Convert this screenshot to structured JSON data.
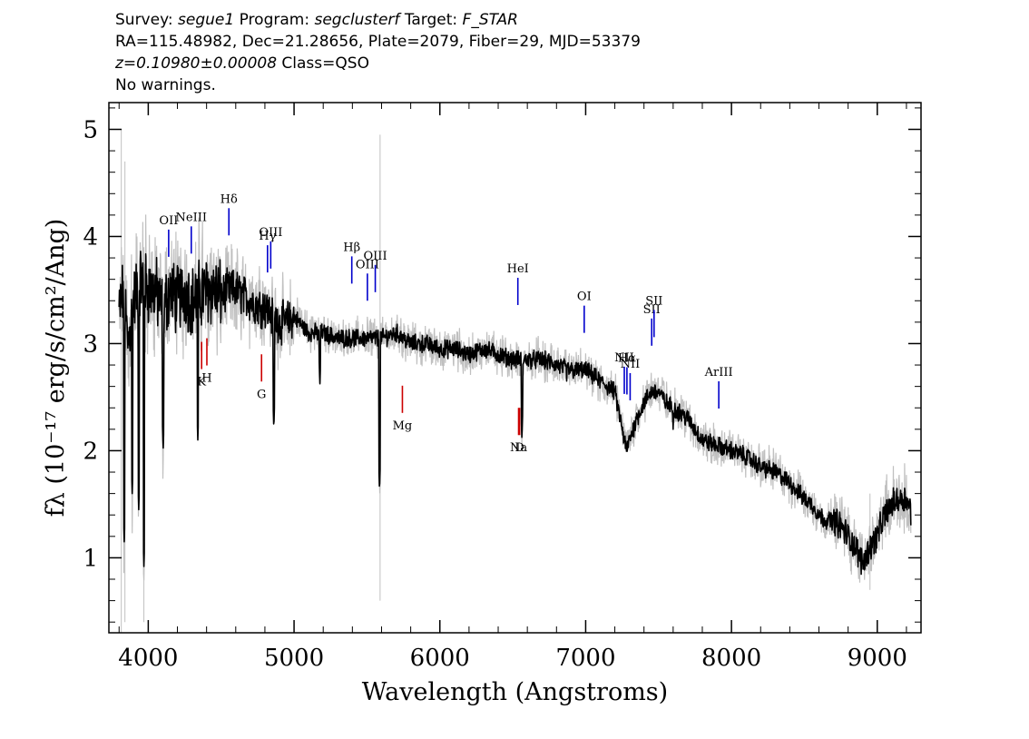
{
  "header": {
    "survey_label": "Survey:",
    "survey": "segue1",
    "program_label": "Program:",
    "program": "segclusterf",
    "target_label": "Target:",
    "target": "F_STAR",
    "line2": "RA=115.48982, Dec=21.28656, Plate=2079, Fiber=29, MJD=53379",
    "redshift": "z=0.10980±0.00008",
    "class": "Class=QSO",
    "warnings": "No warnings."
  },
  "chart_data": {
    "type": "line",
    "xlabel": "Wavelength (Angstroms)",
    "ylabel": "fλ (10⁻¹⁷ erg/s/cm²/Ang)",
    "xlim": [
      3730,
      9300
    ],
    "ylim": [
      0.3,
      5.25
    ],
    "x_ticks": [
      4000,
      5000,
      6000,
      7000,
      8000,
      9000
    ],
    "y_ticks": [
      1,
      2,
      3,
      4,
      5
    ],
    "grid": false,
    "colors": {
      "spectrum": "#000000",
      "error": "#c0c0c0",
      "emission_line": "#0000cc",
      "absorption_line": "#cc0000"
    },
    "series": [
      {
        "x": [
          3800,
          3830,
          3860,
          3900,
          3950,
          4000,
          4050,
          4100,
          4150,
          4200,
          4250,
          4300,
          4350,
          4400,
          4450,
          4500,
          4550,
          4600,
          4650,
          4700,
          4750,
          4800,
          4850,
          4900,
          4950,
          5000,
          5100,
          5200,
          5300,
          5400,
          5500,
          5600,
          5700,
          5800,
          5900,
          6000,
          6100,
          6200,
          6300,
          6400,
          6500,
          6600,
          6700,
          6800,
          6900,
          7000,
          7050,
          7100,
          7150,
          7200,
          7250,
          7280,
          7300,
          7350,
          7400,
          7450,
          7500,
          7550,
          7600,
          7650,
          7700,
          7750,
          7800,
          7900,
          8000,
          8100,
          8200,
          8300,
          8400,
          8500,
          8550,
          8600,
          8650,
          8700,
          8750,
          8800,
          8850,
          8900,
          8950,
          9000,
          9050,
          9100,
          9150,
          9200,
          9230
        ],
        "y": [
          3.3,
          3.5,
          3.0,
          3.4,
          3.6,
          3.5,
          3.5,
          3.3,
          3.5,
          3.4,
          3.5,
          3.4,
          3.45,
          3.5,
          3.5,
          3.45,
          3.5,
          3.5,
          3.45,
          3.4,
          3.35,
          3.35,
          3.25,
          3.2,
          3.2,
          3.25,
          3.1,
          3.1,
          3.05,
          3.05,
          3.05,
          3.05,
          3.1,
          3.0,
          3.0,
          2.95,
          2.95,
          2.9,
          2.95,
          2.9,
          2.85,
          2.85,
          2.85,
          2.8,
          2.75,
          2.75,
          2.7,
          2.65,
          2.6,
          2.55,
          2.2,
          2.0,
          2.1,
          2.3,
          2.45,
          2.55,
          2.55,
          2.45,
          2.4,
          2.35,
          2.3,
          2.2,
          2.1,
          2.05,
          2.0,
          1.95,
          1.85,
          1.8,
          1.7,
          1.55,
          1.5,
          1.4,
          1.35,
          1.35,
          1.3,
          1.2,
          1.1,
          0.95,
          1.1,
          1.2,
          1.4,
          1.5,
          1.55,
          1.55,
          1.45
        ],
        "absorption_dips": [
          {
            "x": 3835,
            "y": 1.15
          },
          {
            "x": 3890,
            "y": 1.6
          },
          {
            "x": 3935,
            "y": 1.45
          },
          {
            "x": 3970,
            "y": 0.92
          },
          {
            "x": 4102,
            "y": 2.0
          },
          {
            "x": 4340,
            "y": 2.1
          },
          {
            "x": 4861,
            "y": 2.2
          },
          {
            "x": 5177,
            "y": 2.6
          },
          {
            "x": 5586,
            "y": 1.62
          },
          {
            "x": 6563,
            "y": 2.1
          },
          {
            "x": 6870,
            "y": 2.65
          },
          {
            "x": 7600,
            "y": 2.2
          }
        ]
      }
    ],
    "emission_lines": [
      {
        "label": "OII",
        "x": 4140
      },
      {
        "label": "NeIII",
        "x": 4295
      },
      {
        "label": "Hδ",
        "x": 4553
      },
      {
        "label": "Hγ",
        "x": 4818
      },
      {
        "label": "OIII",
        "x": 4840
      },
      {
        "label": "Hβ",
        "x": 5396
      },
      {
        "label": "OIII",
        "x": 5503
      },
      {
        "label": "OIII",
        "x": 5557
      },
      {
        "label": "HeI",
        "x": 6535
      },
      {
        "label": "OI",
        "x": 6990
      },
      {
        "label": "NII",
        "x": 7265
      },
      {
        "label": "Hα",
        "x": 7283
      },
      {
        "label": "NII",
        "x": 7305
      },
      {
        "label": "SII",
        "x": 7453
      },
      {
        "label": "SII",
        "x": 7469
      },
      {
        "label": "ArIII",
        "x": 7913
      }
    ],
    "absorption_lines": [
      {
        "label": "K",
        "x": 4366
      },
      {
        "label": "H",
        "x": 4402
      },
      {
        "label": "G",
        "x": 4777
      },
      {
        "label": "Mg",
        "x": 5743
      },
      {
        "label": "Na",
        "x": 6540
      },
      {
        "label": "D",
        "x": 6547
      }
    ]
  }
}
